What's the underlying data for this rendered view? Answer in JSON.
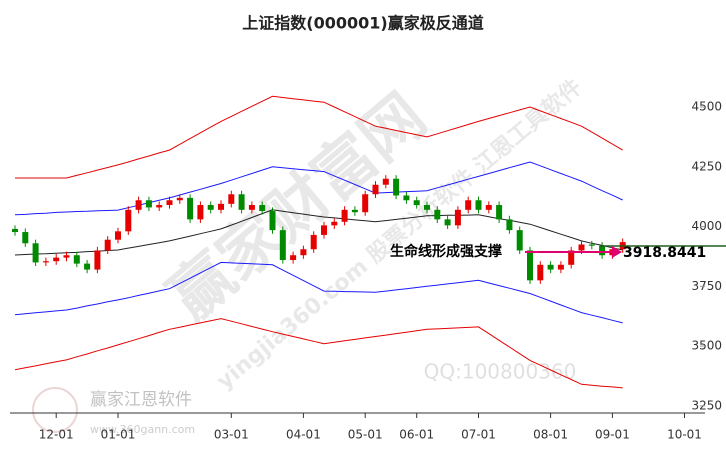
{
  "chart_data": {
    "type": "candlestick",
    "title": "上证指数(000001)赢家极反通道",
    "categories": [
      null,
      null,
      null,
      null,
      "12-01",
      null,
      null,
      null,
      null,
      null,
      "01-01",
      null,
      null,
      null,
      null,
      null,
      null,
      null,
      null,
      null,
      null,
      "03-01",
      null,
      null,
      null,
      null,
      null,
      null,
      "04-01",
      null,
      null,
      null,
      null,
      null,
      "05-01",
      null,
      null,
      null,
      null,
      "06-01",
      null,
      null,
      null,
      null,
      null,
      "07-01",
      null,
      null,
      null,
      null,
      null,
      null,
      "08-01",
      null,
      null,
      null,
      null,
      null,
      "09-01",
      null,
      null,
      null,
      null,
      null,
      null,
      "10-01"
    ],
    "open": [
      3990,
      3977,
      3930,
      3850,
      3855,
      3870,
      3880,
      3845,
      3820,
      3900,
      3945,
      3980,
      4070,
      4110,
      4080,
      4090,
      4110,
      4120,
      4030,
      4090,
      4070,
      4095,
      4135,
      4070,
      4090,
      4065,
      3985,
      3860,
      3880,
      3905,
      3965,
      4005,
      4020,
      4070,
      4060,
      4135,
      4175,
      4200,
      4130,
      4110,
      4090,
      4070,
      4030,
      4005,
      4070,
      4110,
      4070,
      4090,
      4030,
      3985,
      3900,
      3775,
      3840,
      3820,
      3840,
      3900,
      3925,
      3920,
      3880,
      3905,
      null,
      null,
      null,
      null,
      null,
      null
    ],
    "high": [
      4005,
      3992,
      3945,
      3870,
      3885,
      3895,
      3895,
      3860,
      3915,
      3960,
      3995,
      4085,
      4125,
      4125,
      4105,
      4125,
      4135,
      4135,
      4105,
      4105,
      4110,
      4150,
      4150,
      4105,
      4105,
      4080,
      4000,
      3895,
      3920,
      3980,
      4020,
      4035,
      4085,
      4085,
      4150,
      4190,
      4215,
      4215,
      4145,
      4125,
      4105,
      4085,
      4045,
      4085,
      4125,
      4125,
      4105,
      4105,
      4045,
      4000,
      3915,
      3855,
      3855,
      3855,
      3915,
      3940,
      3940,
      3935,
      3920,
      3950,
      null,
      null,
      null,
      null,
      null,
      null
    ],
    "low": [
      3962,
      3915,
      3835,
      3835,
      3840,
      3855,
      3830,
      3805,
      3805,
      3885,
      3930,
      3965,
      4055,
      4065,
      4065,
      4075,
      4095,
      4015,
      4015,
      4055,
      4055,
      4080,
      4055,
      4055,
      4050,
      3970,
      3845,
      3845,
      3865,
      3890,
      3950,
      3990,
      4005,
      4045,
      4045,
      4120,
      4160,
      4115,
      4095,
      4075,
      4055,
      4015,
      3990,
      3990,
      4055,
      4055,
      4055,
      4015,
      3970,
      3885,
      3760,
      3760,
      3805,
      3805,
      3825,
      3885,
      3905,
      3865,
      3865,
      3890,
      null,
      null,
      null,
      null,
      null,
      null
    ],
    "close": [
      3977,
      3930,
      3850,
      3855,
      3870,
      3880,
      3845,
      3820,
      3900,
      3945,
      3980,
      4070,
      4110,
      4080,
      4090,
      4110,
      4120,
      4030,
      4090,
      4070,
      4095,
      4135,
      4070,
      4090,
      4065,
      3985,
      3860,
      3880,
      3905,
      3965,
      4005,
      4020,
      4070,
      4060,
      4135,
      4175,
      4200,
      4130,
      4110,
      4090,
      4070,
      4030,
      4005,
      4070,
      4110,
      4070,
      4090,
      4030,
      3985,
      3900,
      3775,
      3840,
      3820,
      3840,
      3900,
      3925,
      3920,
      3880,
      3905,
      3935,
      null,
      null,
      null,
      null,
      null,
      null
    ],
    "up_color": "#e60000",
    "down_color": "#008a00",
    "series": [
      {
        "color": "#e60000",
        "values": [
          4203,
          4203,
          4203,
          4203,
          4203,
          4203,
          4214,
          4225,
          4236,
          4247,
          4258,
          4270,
          4283,
          4295,
          4308,
          4320,
          4344,
          4368,
          4392,
          4416,
          4440,
          4461,
          4482,
          4503,
          4524,
          4545,
          4540,
          4535,
          4530,
          4525,
          4520,
          4500,
          4480,
          4460,
          4440,
          4420,
          4411,
          4402,
          4393,
          4384,
          4375,
          4388,
          4401,
          4414,
          4427,
          4440,
          4452,
          4464,
          4476,
          4488,
          4500,
          4484,
          4468,
          4452,
          4436,
          4420,
          4395,
          4370,
          4345,
          4320,
          null,
          null,
          null,
          null,
          null,
          null
        ]
      },
      {
        "color": "#1a1aff",
        "values": [
          4049,
          4051,
          4054,
          4056,
          4059,
          4061,
          4063,
          4064,
          4066,
          4067,
          4069,
          4079,
          4089,
          4100,
          4110,
          4120,
          4132,
          4144,
          4156,
          4168,
          4180,
          4194,
          4208,
          4222,
          4236,
          4250,
          4246,
          4242,
          4238,
          4234,
          4230,
          4212,
          4194,
          4176,
          4158,
          4140,
          4142,
          4144,
          4146,
          4148,
          4150,
          4162,
          4174,
          4186,
          4198,
          4210,
          4222,
          4234,
          4246,
          4258,
          4270,
          4254,
          4238,
          4222,
          4206,
          4190,
          4170,
          4150,
          4131,
          4111,
          null,
          null,
          null,
          null,
          null,
          null
        ]
      },
      {
        "color": "#222222",
        "values": [
          3881,
          3883,
          3885,
          3886,
          3888,
          3890,
          3892,
          3895,
          3897,
          3900,
          3902,
          3910,
          3917,
          3925,
          3932,
          3940,
          3950,
          3960,
          3970,
          3980,
          3990,
          4006,
          4022,
          4038,
          4054,
          4070,
          4064,
          4058,
          4052,
          4046,
          4040,
          4036,
          4032,
          4028,
          4024,
          4020,
          4025,
          4030,
          4035,
          4040,
          4045,
          4046,
          4047,
          4047,
          4048,
          4049,
          4041,
          4033,
          4026,
          4018,
          4010,
          3996,
          3982,
          3968,
          3954,
          3940,
          3930,
          3921,
          3911,
          3902,
          null,
          null,
          null,
          null,
          null,
          null
        ]
      },
      {
        "color": "#1a1aff",
        "values": [
          3631,
          3635,
          3639,
          3643,
          3647,
          3651,
          3659,
          3668,
          3676,
          3685,
          3693,
          3702,
          3712,
          3721,
          3731,
          3740,
          3762,
          3784,
          3806,
          3828,
          3850,
          3848,
          3846,
          3844,
          3842,
          3840,
          3818,
          3796,
          3774,
          3752,
          3730,
          3729,
          3728,
          3727,
          3726,
          3725,
          3730,
          3735,
          3740,
          3745,
          3750,
          3755,
          3760,
          3765,
          3770,
          3775,
          3764,
          3753,
          3742,
          3731,
          3720,
          3704,
          3688,
          3672,
          3656,
          3640,
          3629,
          3619,
          3608,
          3597,
          null,
          null,
          null,
          null,
          null,
          null
        ]
      },
      {
        "color": "#e60000",
        "values": [
          3401,
          3409,
          3417,
          3426,
          3434,
          3442,
          3455,
          3467,
          3480,
          3492,
          3505,
          3518,
          3531,
          3544,
          3557,
          3570,
          3579,
          3588,
          3597,
          3606,
          3615,
          3604,
          3593,
          3582,
          3571,
          3560,
          3550,
          3540,
          3530,
          3520,
          3510,
          3516,
          3522,
          3528,
          3534,
          3540,
          3546,
          3552,
          3558,
          3564,
          3570,
          3572,
          3574,
          3576,
          3578,
          3580,
          3552,
          3524,
          3496,
          3468,
          3440,
          3420,
          3400,
          3380,
          3360,
          3340,
          3336,
          3332,
          3329,
          3325,
          null,
          null,
          null,
          null,
          null,
          null
        ]
      }
    ],
    "ylim": [
      3220,
      4885
    ],
    "yticks": [
      3250,
      3500,
      3750,
      4000,
      4250,
      4500
    ],
    "annotation": "生命线形成强支撑",
    "annotation_color": "#e0006e",
    "support_value": 3918.8441,
    "support_color": "#1f5f1f",
    "watermarks": [
      "赢家财富网",
      "yingjia360.com 股票分析软件 江恩工具软件",
      "QQ:100800360",
      "赢家江恩软件",
      "www.360gann.com"
    ]
  }
}
